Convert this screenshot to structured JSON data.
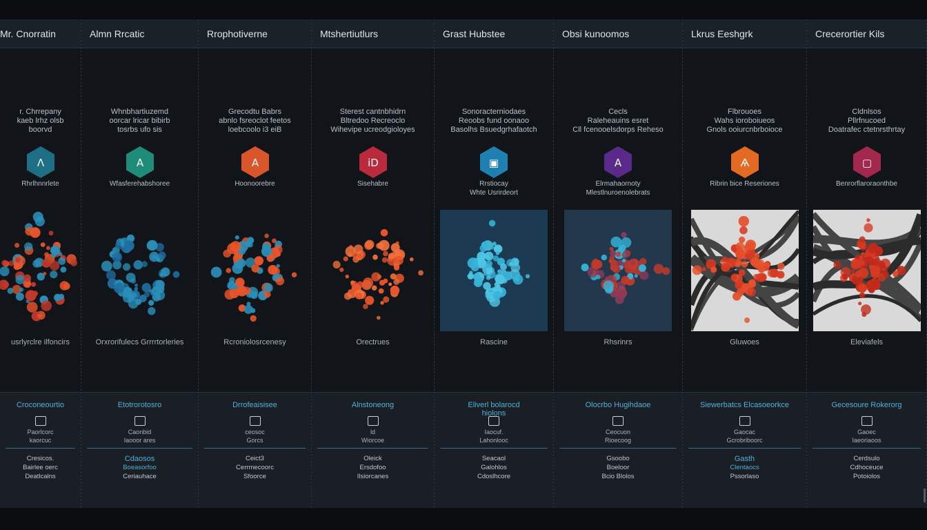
{
  "columns": [
    {
      "header": "Mr. Cnorratin",
      "desc": [
        "r. Chrrepany",
        "kaeb lrhz olsb",
        "boorvd"
      ],
      "hex_color": "#1e6e86",
      "hex_glyph": "Λ",
      "category": "Rhrlhnnrlete",
      "viz": {
        "style": "none",
        "palette": [
          "#e8552a",
          "#2a8fb8",
          "#c0392b"
        ]
      },
      "caption": "usrlyrclre ilfoncirs",
      "metrics": {
        "title": "Croconeourtio",
        "l1": "Paorlcorc",
        "l2": "kaorcuc",
        "l3": "Cresicos.",
        "l4": "Bairlee oerc",
        "l5": "Deatlcalns",
        "accent": false
      }
    },
    {
      "header": "Almn Rrcatic",
      "desc": [
        "Whnbhartiuzemd",
        "oorcar lricar bibirb",
        "tosrbs ufo sis"
      ],
      "hex_color": "#1f8c7a",
      "hex_glyph": "A",
      "category": "Wfasferehabshoree",
      "viz": {
        "style": "none",
        "palette": [
          "#2a8fb8",
          "#1f6fa0"
        ]
      },
      "caption": "Orxrorifulecs Grrrrtorleries",
      "metrics": {
        "title": "Etotrorotosro",
        "l1": "Caonbid",
        "l2": "Iaooor ares",
        "l3": "Cdaosos",
        "l4": "Boeasorfoo",
        "l5": "Ceriauhace",
        "accent": true
      }
    },
    {
      "header": "Rrophotiverne",
      "desc": [
        "Grecodtu Babrs",
        "abnlo fsreoclot feetos",
        "loebcoolo i3 eiB"
      ],
      "hex_color": "#d9562a",
      "hex_glyph": "A",
      "category": "Hoonoorebre",
      "viz": {
        "style": "none",
        "palette": [
          "#e8552a",
          "#2a8fb8"
        ]
      },
      "caption": "Rcroniolosrcenesy",
      "metrics": {
        "title": "Drrofeaisisee",
        "l1": "ceosoc",
        "l2": "Gorcs",
        "l3": "Ceict3",
        "l4": "Cerrmecoorc",
        "l5": "Sfoorce",
        "accent": false
      }
    },
    {
      "header": "Mtshertiutlurs",
      "desc": [
        "Sterest cantnbhidrn",
        "Bltredoo Recreoclo",
        "Wihevipe ucreodgioloyes"
      ],
      "hex_color": "#b82a3c",
      "hex_glyph": "iD",
      "category": "Sisehabre",
      "viz": {
        "style": "none",
        "palette": [
          "#e8552a",
          "#f0703a"
        ]
      },
      "caption": "Orectrues",
      "metrics": {
        "title": "Alnstoneong",
        "l1": "ld",
        "l2": "Wiorcoe",
        "l3": "Oleick",
        "l4": "Ersdofoo",
        "l5": "Ilsiorcanes",
        "accent": false
      }
    },
    {
      "header": "Grast Hubstee",
      "desc": [
        "Sonoracterniodaes",
        "Reoobs fund oonaoo",
        "Basolhs Bsuedgrhafaotch"
      ],
      "hex_color": "#1f7fb0",
      "hex_glyph": "▣",
      "category": "Rrstiocay",
      "category2": "Whte Usrirdeort",
      "viz": {
        "style": "blue",
        "palette": [
          "#35b4d8",
          "#4fc5e5"
        ]
      },
      "caption": "Rascine",
      "metrics": {
        "title": "Eliverl bolarocd",
        "title2": "hiolons",
        "l1": "Iaocuf.",
        "l2": "Lahonlooc",
        "l3": "Seacaol",
        "l4": "Galohlos",
        "l5": "Cdoslhcore",
        "accent": false
      }
    },
    {
      "header": "Obsi kunoomos",
      "desc": [
        "Cecls",
        "Raleheauins esret",
        "Cll fcenooelsdorps Reheso"
      ],
      "hex_color": "#5a2a8a",
      "hex_glyph": "A",
      "category": "Elrmahaornoty",
      "category2": "Mlestlnuroenolebrats",
      "viz": {
        "style": "slate",
        "palette": [
          "#35b4d8",
          "#c0392b",
          "#8a3a5a"
        ]
      },
      "caption": "Rhsrinrs",
      "metrics": {
        "title": "Olocrbo Hugihdaoe",
        "l1": "Ceocuon",
        "l2": "Rioecoog",
        "l3": "Gsoobo",
        "l4": "Boeloor",
        "l5": "Bcio Blolos",
        "accent": false
      }
    },
    {
      "header": "Lkrus Eeshgrk",
      "desc": [
        "Flbrouoes",
        "Wahs ioroboiueos",
        "Gnols ooiurcnbrboioce"
      ],
      "hex_color": "#e36a22",
      "hex_glyph": "Ѧ",
      "category": "Ribrin bice Reseriones",
      "viz": {
        "style": "photo",
        "palette": [
          "#d93a22",
          "#e6502c"
        ]
      },
      "caption": "Gluwoes",
      "metrics": {
        "title": "Siewerbatcs Elcasoeorkce",
        "l1": "Gaocac",
        "l2": "Gcrobriboorc",
        "l3": "Gasth",
        "l4": "Clentaocs",
        "l5": "Pssorlaso",
        "accent": true
      }
    },
    {
      "header": "Crecerortier Kils",
      "desc": [
        "Cldnlsos",
        "Pllrfnucoed",
        "Doatrafec ctetnrsthrtay"
      ],
      "hex_color": "#a3284e",
      "hex_glyph": "▢",
      "category": "Benrorflaroraonthbe",
      "viz": {
        "style": "photo",
        "palette": [
          "#d93a22",
          "#c02a1a"
        ]
      },
      "caption": "Eleviafels",
      "metrics": {
        "title": "Gecesoure Rokerorg",
        "l1": "Gaoec",
        "l2": "Iaeoriaoos",
        "l3": "Cerdsulo",
        "l4": "Cdhoceuce",
        "l5": "Potoiolos",
        "accent": false
      }
    }
  ]
}
